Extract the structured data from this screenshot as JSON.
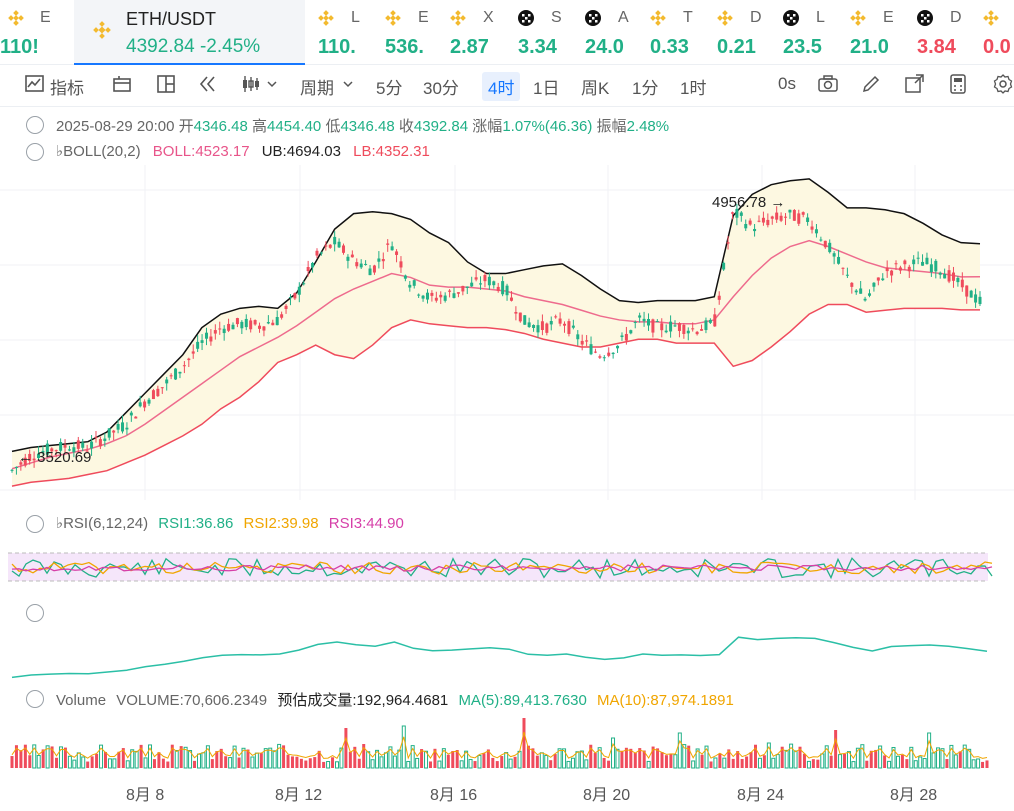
{
  "tickers": [
    {
      "name": "E",
      "price": "110!",
      "dir": "up",
      "icon": "bnb"
    },
    {
      "name": "L",
      "price": "110.",
      "dir": "up",
      "icon": "bnb"
    },
    {
      "name": "E",
      "price": "536.",
      "dir": "up",
      "icon": "bnb"
    },
    {
      "name": "X",
      "price": "2.87",
      "dir": "up",
      "icon": "bnb"
    },
    {
      "name": "S",
      "price": "3.34",
      "dir": "up",
      "icon": "okx"
    },
    {
      "name": "A",
      "price": "24.0",
      "dir": "up",
      "icon": "okx"
    },
    {
      "name": "T",
      "price": "0.33",
      "dir": "up",
      "icon": "bnb"
    },
    {
      "name": "D",
      "price": "0.21",
      "dir": "up",
      "icon": "bnb"
    },
    {
      "name": "L",
      "price": "23.5",
      "dir": "up",
      "icon": "okx"
    },
    {
      "name": "E",
      "price": "21.0",
      "dir": "up",
      "icon": "bnb"
    },
    {
      "name": "D",
      "price": "3.84",
      "dir": "dn",
      "icon": "okx"
    },
    {
      "name": "",
      "price": "0.0",
      "dir": "dn",
      "icon": "bnb"
    }
  ],
  "active_ticker": {
    "symbol": "ETH/USDT",
    "price": "4392.84",
    "change": "-2.45%",
    "icon": "bnb"
  },
  "toolbar": {
    "indicators": "指标",
    "period_label": "周期",
    "intervals": [
      "5分",
      "30分",
      "4时",
      "1日",
      "周K",
      "1分",
      "1时"
    ],
    "active_interval": "4时",
    "zero_s": "0s"
  },
  "ohlc": {
    "date": "2025-08-29 20:00",
    "open_label": "开",
    "open": "4346.48",
    "high_label": "高",
    "high": "4454.40",
    "low_label": "低",
    "low": "4346.48",
    "close_label": "收",
    "close": "4392.84",
    "amp_label": "涨幅",
    "amp": "1.07%(46.36)",
    "swing_label": "振幅",
    "swing": "2.48%"
  },
  "boll": {
    "label": "BOLL(20,2)",
    "mid": "BOLL:4523.17",
    "ub": "UB:4694.03",
    "lb": "LB:4352.31"
  },
  "rsi": {
    "label": "RSI(6,12,24)",
    "rsi1": "RSI1:36.86",
    "rsi2": "RSI2:39.98",
    "rsi3": "RSI3:44.90"
  },
  "volume": {
    "label": "Volume",
    "volume": "VOLUME:70,606.2349",
    "est": "预估成交量:192,964.4681",
    "ma5": "MA(5):89,413.7630",
    "ma10": "MA(10):87,974.1891"
  },
  "chart_data": {
    "type": "candlestick",
    "x_labels": [
      "8月 8",
      "8月 12",
      "8月 16",
      "8月 20",
      "8月 24",
      "8月 28"
    ],
    "high_marker": "4956.78",
    "low_marker": "3520.69",
    "close_series": [
      3520,
      3600,
      3630,
      3650,
      3640,
      3700,
      3760,
      3880,
      3960,
      4060,
      4180,
      4260,
      4280,
      4270,
      4300,
      4430,
      4620,
      4700,
      4610,
      4560,
      4700,
      4490,
      4410,
      4430,
      4470,
      4510,
      4460,
      4290,
      4260,
      4300,
      4190,
      4120,
      4170,
      4300,
      4260,
      4270,
      4250,
      4280,
      4860,
      4780,
      4820,
      4840,
      4820,
      4680,
      4520,
      4400,
      4550,
      4580,
      4600,
      4560,
      4480,
      4392.84
    ],
    "boll_mid": [
      3530,
      3560,
      3590,
      3610,
      3630,
      3660,
      3700,
      3760,
      3830,
      3900,
      3970,
      4040,
      4110,
      4160,
      4210,
      4270,
      4340,
      4410,
      4460,
      4500,
      4540,
      4520,
      4480,
      4470,
      4470,
      4460,
      4450,
      4420,
      4400,
      4380,
      4350,
      4320,
      4300,
      4290,
      4290,
      4280,
      4280,
      4300,
      4420,
      4530,
      4620,
      4680,
      4710,
      4680,
      4640,
      4600,
      4570,
      4560,
      4550,
      4540,
      4523,
      4523.17
    ],
    "boll_ub": [
      3620,
      3640,
      3650,
      3660,
      3670,
      3720,
      3820,
      3920,
      4020,
      4120,
      4260,
      4330,
      4360,
      4370,
      4360,
      4440,
      4600,
      4770,
      4850,
      4860,
      4850,
      4820,
      4750,
      4700,
      4600,
      4540,
      4540,
      4560,
      4580,
      4590,
      4530,
      4460,
      4400,
      4390,
      4400,
      4400,
      4400,
      4420,
      4840,
      4950,
      5000,
      5020,
      5030,
      4960,
      4880,
      4880,
      4870,
      4850,
      4800,
      4740,
      4700,
      4694.03
    ],
    "boll_lb": [
      3440,
      3460,
      3470,
      3480,
      3500,
      3520,
      3560,
      3600,
      3650,
      3700,
      3760,
      3840,
      3900,
      3980,
      4080,
      4120,
      4170,
      4120,
      4100,
      4170,
      4260,
      4300,
      4280,
      4270,
      4260,
      4260,
      4250,
      4230,
      4200,
      4180,
      4160,
      4160,
      4180,
      4200,
      4200,
      4180,
      4180,
      4180,
      4060,
      4090,
      4160,
      4240,
      4330,
      4380,
      4380,
      4340,
      4350,
      4360,
      4360,
      4360,
      4352,
      4352.31
    ]
  }
}
